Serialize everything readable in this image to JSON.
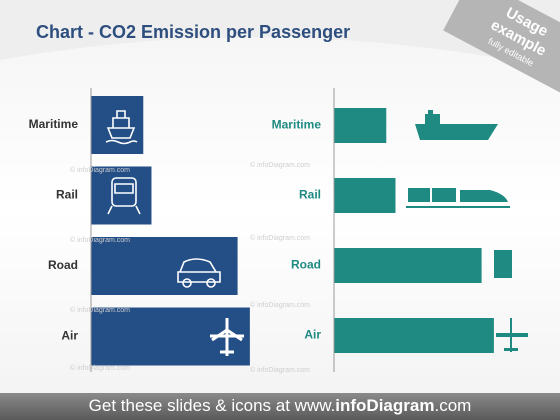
{
  "title": "Chart - CO2 Emission per Passenger",
  "badge": {
    "line1": "Usage",
    "line2": "example",
    "line3": "fully editable"
  },
  "watermark": "© infoDiagram.com",
  "footer": {
    "prefix": "Get these slides & icons at www.",
    "brand": "infoDiagram",
    "suffix": ".com"
  },
  "chart_data": [
    {
      "type": "bar",
      "orientation": "horizontal",
      "categories": [
        "Maritime",
        "Rail",
        "Road",
        "Air"
      ],
      "values": [
        51,
        59,
        143,
        155
      ],
      "color": "#234e86",
      "label_color": "#333333",
      "xlim": [
        0,
        160
      ]
    },
    {
      "type": "bar",
      "orientation": "horizontal",
      "categories": [
        "Maritime",
        "Rail",
        "Road",
        "Air"
      ],
      "values": [
        51,
        60,
        144,
        156
      ],
      "color": "#1f8a82",
      "label_color": "#1f8a82",
      "xlim": [
        0,
        160
      ]
    }
  ]
}
